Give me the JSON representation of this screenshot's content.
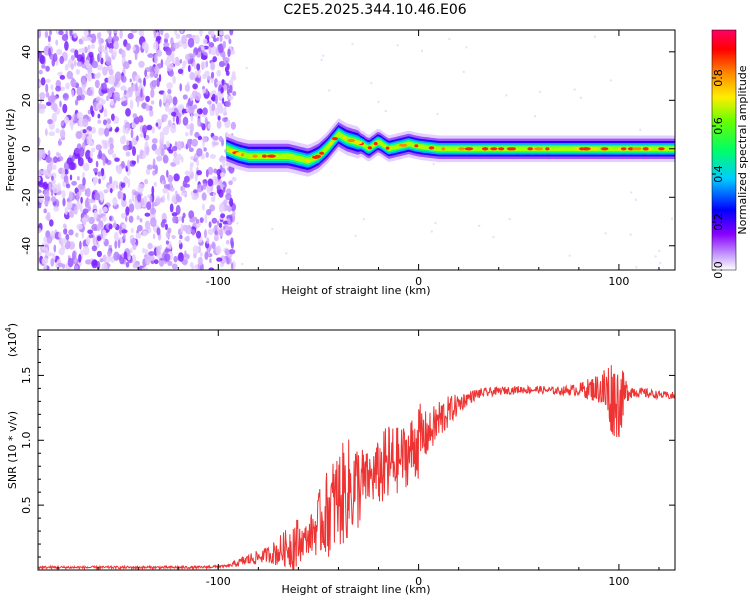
{
  "title": "C2E5.2025.344.10.46.E06",
  "chart_data": [
    {
      "type": "heatmap",
      "xlabel": "Height of straight line (km)",
      "ylabel": "Frequency (Hz)",
      "xlim": [
        -190,
        128
      ],
      "ylim": [
        -50,
        49
      ],
      "xticks": [
        -100,
        0,
        100
      ],
      "yticks": [
        -40,
        -20,
        0,
        20,
        40
      ],
      "colorbar": {
        "label": "Normalized spectral amplitude",
        "range": [
          0,
          1
        ],
        "ticks": [
          "0.0",
          "0.2",
          "0.4",
          "0.6",
          "0.8"
        ],
        "tick_values": [
          0.0,
          0.2,
          0.4,
          0.6,
          0.8
        ]
      },
      "noise_region_x": [
        -190,
        -95
      ],
      "ridge": {
        "x": [
          -96,
          -90,
          -85,
          -80,
          -75,
          -70,
          -65,
          -60,
          -55,
          -50,
          -46,
          -42,
          -40,
          -36,
          -32,
          -28,
          -25,
          -20,
          -15,
          -10,
          -5,
          0,
          10,
          20,
          40,
          60,
          80,
          100,
          128
        ],
        "y": [
          0,
          -2,
          -3,
          -3,
          -3,
          -3,
          -3,
          -4,
          -5,
          -3,
          0,
          4,
          6,
          4,
          3,
          2,
          0,
          3,
          0,
          1,
          2,
          1,
          0,
          0,
          0,
          0,
          0,
          0,
          0
        ]
      }
    },
    {
      "type": "line",
      "xlabel": "Height of straight line (km)",
      "ylabel": "SNR (10 * v/v)",
      "yscale_label": "(x10",
      "yscale_exponent": "4",
      "xlim": [
        -190,
        128
      ],
      "ylim": [
        0,
        1.85
      ],
      "xticks": [
        -100,
        0,
        100
      ],
      "yticks": [
        0.5,
        1.0,
        1.5
      ],
      "ytick_labels": [
        "0.5",
        "1.0",
        "1.5"
      ],
      "series": [
        {
          "name": "SNR",
          "color": "#ee3333",
          "x": [
            -190,
            -150,
            -110,
            -95,
            -85,
            -80,
            -75,
            -70,
            -65,
            -62,
            -58,
            -55,
            -50,
            -45,
            -40,
            -35,
            -30,
            -25,
            -20,
            -15,
            -10,
            -5,
            0,
            5,
            10,
            15,
            20,
            25,
            30,
            40,
            50,
            60,
            70,
            80,
            90,
            95,
            100,
            105,
            110,
            120,
            128
          ],
          "y": [
            0.02,
            0.02,
            0.02,
            0.03,
            0.08,
            0.1,
            0.12,
            0.14,
            0.18,
            0.2,
            0.22,
            0.25,
            0.35,
            0.45,
            0.55,
            0.62,
            0.65,
            0.7,
            0.75,
            0.8,
            0.85,
            0.9,
            1.0,
            1.05,
            1.15,
            1.22,
            1.28,
            1.33,
            1.36,
            1.38,
            1.39,
            1.39,
            1.38,
            1.39,
            1.4,
            1.35,
            1.3,
            1.38,
            1.37,
            1.35,
            1.34
          ],
          "noise_amp": [
            0.01,
            0.01,
            0.01,
            0.01,
            0.05,
            0.05,
            0.06,
            0.12,
            0.15,
            0.25,
            0.12,
            0.12,
            0.25,
            0.35,
            0.4,
            0.4,
            0.35,
            0.2,
            0.25,
            0.35,
            0.25,
            0.25,
            0.3,
            0.15,
            0.18,
            0.12,
            0.08,
            0.05,
            0.04,
            0.03,
            0.03,
            0.03,
            0.03,
            0.05,
            0.12,
            0.3,
            0.3,
            0.06,
            0.04,
            0.03,
            0.03
          ]
        }
      ]
    }
  ]
}
